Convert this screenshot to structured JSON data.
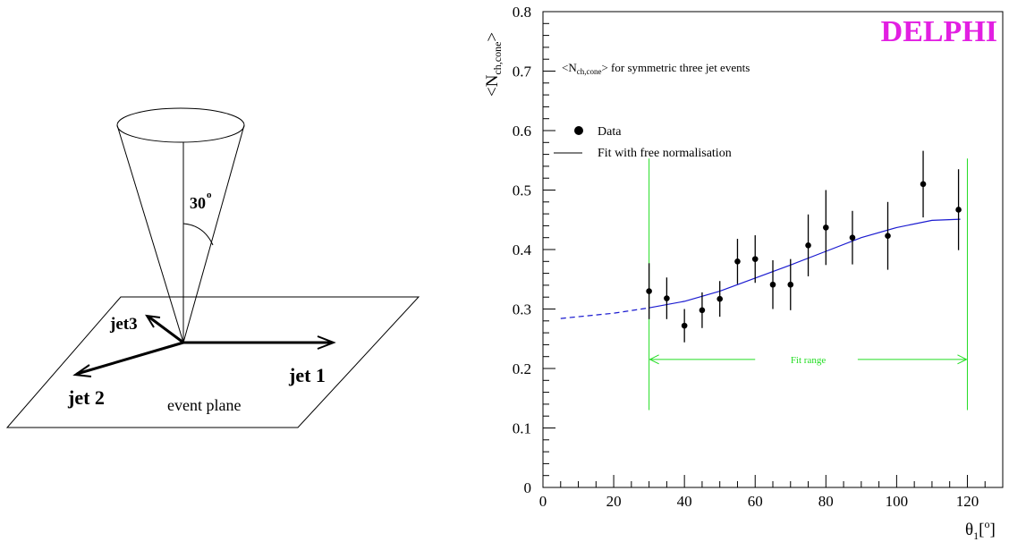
{
  "diagram": {
    "cone_angle_value": "30",
    "cone_angle_unit": "o",
    "jet1_label": "jet 1",
    "jet2_label": "jet 2",
    "jet3_label": "jet3",
    "plane_label": "event plane"
  },
  "chart_data": {
    "type": "scatter",
    "brand": "DELPHI",
    "annotation_parts": {
      "prefix": "<N",
      "subscript": "ch,cone",
      "suffix": "> for symmetric three jet events"
    },
    "ylabel_parts": {
      "prefix": "<N",
      "subscript": "ch,cone",
      "suffix": ">"
    },
    "xlabel_parts": {
      "base": "θ",
      "subscript": "1",
      "bracket_open": "[",
      "superscript": "o",
      "bracket_close": "]"
    },
    "xlim": [
      0,
      130
    ],
    "ylim": [
      0,
      0.8
    ],
    "x_ticks": [
      0,
      20,
      40,
      60,
      80,
      100,
      120
    ],
    "y_ticks": [
      0,
      0.1,
      0.2,
      0.3,
      0.4,
      0.5,
      0.6,
      0.7,
      0.8
    ],
    "x_tick_labels": [
      "0",
      "20",
      "40",
      "60",
      "80",
      "100",
      "120"
    ],
    "y_tick_labels": [
      "0",
      "0.1",
      "0.2",
      "0.3",
      "0.4",
      "0.5",
      "0.6",
      "0.7",
      "0.8"
    ],
    "legend": {
      "data_label": "Data",
      "fit_label": "Fit with free normalisation",
      "placement": "top-left"
    },
    "fit_range": {
      "label": "Fit range",
      "x": [
        30,
        120
      ]
    },
    "series": [
      {
        "name": "Data",
        "points": [
          {
            "x": 30,
            "y": 0.33,
            "err": 0.047
          },
          {
            "x": 35,
            "y": 0.318,
            "err": 0.035
          },
          {
            "x": 40,
            "y": 0.272,
            "err": 0.028
          },
          {
            "x": 45,
            "y": 0.298,
            "err": 0.03
          },
          {
            "x": 50,
            "y": 0.317,
            "err": 0.03
          },
          {
            "x": 55,
            "y": 0.38,
            "err": 0.038
          },
          {
            "x": 60,
            "y": 0.384,
            "err": 0.04
          },
          {
            "x": 65,
            "y": 0.341,
            "err": 0.041
          },
          {
            "x": 70,
            "y": 0.341,
            "err": 0.043
          },
          {
            "x": 75,
            "y": 0.407,
            "err": 0.052
          },
          {
            "x": 80,
            "y": 0.437,
            "err": 0.063
          },
          {
            "x": 87.5,
            "y": 0.42,
            "err": 0.045
          },
          {
            "x": 97.5,
            "y": 0.423,
            "err": 0.057
          },
          {
            "x": 107.5,
            "y": 0.51,
            "err": 0.056
          },
          {
            "x": 117.5,
            "y": 0.467,
            "err": 0.068
          }
        ]
      },
      {
        "name": "Fit with free normalisation",
        "solid": [
          [
            30,
            0.302
          ],
          [
            40,
            0.313
          ],
          [
            50,
            0.33
          ],
          [
            60,
            0.352
          ],
          [
            70,
            0.374
          ],
          [
            80,
            0.397
          ],
          [
            90,
            0.42
          ],
          [
            100,
            0.437
          ],
          [
            110,
            0.449
          ],
          [
            118,
            0.451
          ]
        ],
        "dashed": [
          [
            5,
            0.284
          ],
          [
            10,
            0.287
          ],
          [
            20,
            0.293
          ],
          [
            30,
            0.302
          ]
        ]
      }
    ],
    "colors": {
      "brand": "#e21fe2",
      "fit": "#1a1ad0",
      "fit_range": "#22dd22",
      "data": "#000000",
      "frame": "#000000"
    }
  }
}
